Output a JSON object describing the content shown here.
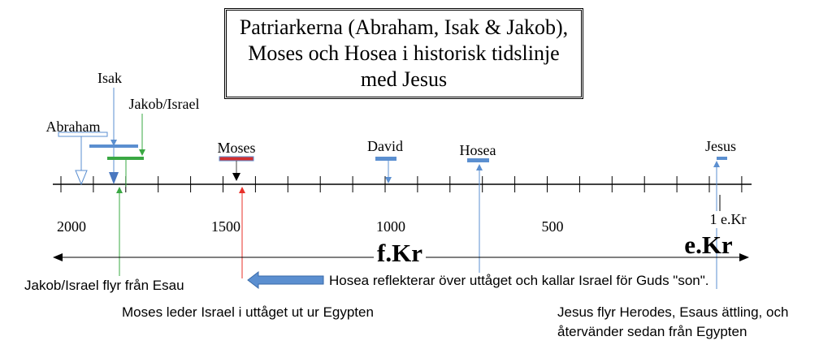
{
  "title": "Patriarkerna (Abraham, Isak & Jakob), Moses och Hosea i historisk tidslinje med Jesus",
  "figures": [
    "Abraham",
    "Isak",
    "Jakob/Israel",
    "Moses",
    "David",
    "Hosea",
    "Jesus"
  ],
  "axis_labels": [
    "2000",
    "1500",
    "1000",
    "500",
    "1 e.Kr"
  ],
  "eras": [
    "f.Kr",
    "e.Kr"
  ],
  "annotations": [
    "Jakob/Israel flyr från Esau",
    "Moses leder Israel i uttåget ut ur Egypten",
    "Hosea reflekterar över uttåget och kallar Israel för Guds \"son\".",
    "Jesus flyr Herodes, Esaus ättling, och återvänder sedan från Egypten"
  ]
}
